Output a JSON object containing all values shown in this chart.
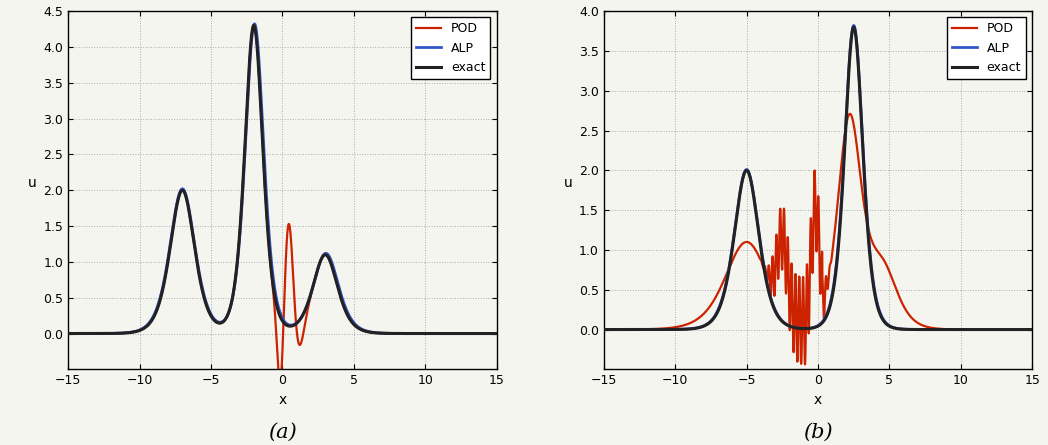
{
  "xlim": [
    -15,
    15
  ],
  "ylim_a": [
    -0.5,
    4.5
  ],
  "ylim_b": [
    -0.5,
    4.0
  ],
  "xlabel": "x",
  "ylabel_a": "u",
  "ylabel_b": "u",
  "xticks": [
    -15,
    -10,
    -5,
    0,
    5,
    10,
    15
  ],
  "yticks_a": [
    0,
    0.5,
    1.0,
    1.5,
    2.0,
    2.5,
    3.0,
    3.5,
    4.0,
    4.5
  ],
  "yticks_b": [
    0,
    0.5,
    1.0,
    1.5,
    2.0,
    2.5,
    3.0,
    3.5,
    4.0
  ],
  "legend_labels": [
    "exact",
    "ALP",
    "POD"
  ],
  "exact_color": "#222222",
  "alp_color": "#3355cc",
  "pod_color": "#cc2200",
  "caption_a": "(a)",
  "caption_b": "(b)",
  "grid_color": "#aaaaaa",
  "grid_style": ":",
  "bg_color": "#f5f5f0",
  "lw_exact": 2.2,
  "lw_alp": 2.0,
  "lw_pod": 1.6
}
